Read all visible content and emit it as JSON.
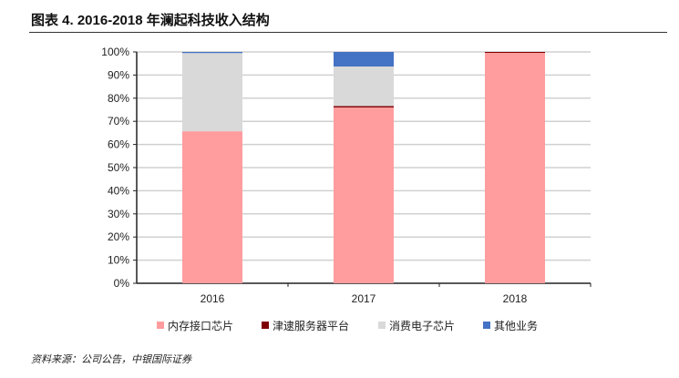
{
  "title": "图表 4. 2016-2018 年澜起科技收入结构",
  "source": "资料来源：公司公告，中银国际证券",
  "chart_data": {
    "type": "bar",
    "stacked": true,
    "categories": [
      "2016",
      "2017",
      "2018"
    ],
    "series": [
      {
        "name": "内存接口芯片",
        "color": "#FF9C9E",
        "values": [
          65.7,
          76.0,
          99.6
        ]
      },
      {
        "name": "津逮服务器平台",
        "color": "#7F0000",
        "values": [
          0,
          0.6,
          0.4
        ]
      },
      {
        "name": "消费电子芯片",
        "color": "#D9D9D9",
        "values": [
          33.8,
          17.1,
          0
        ]
      },
      {
        "name": "其他业务",
        "color": "#4472C4",
        "values": [
          0.5,
          6.3,
          0
        ]
      }
    ],
    "yticks": [
      "0%",
      "10%",
      "20%",
      "30%",
      "40%",
      "50%",
      "60%",
      "70%",
      "80%",
      "90%",
      "100%"
    ],
    "ylim": [
      0,
      100
    ],
    "grid": true,
    "legend": "bottom"
  }
}
